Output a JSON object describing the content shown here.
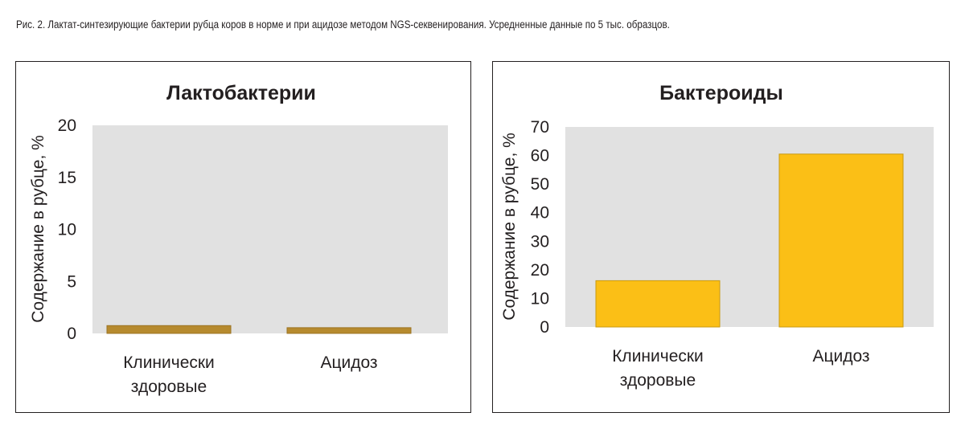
{
  "caption": "Рис. 2. Лактат-синтезирующие бактерии рубца коров в норме и при ацидозе методом NGS-секвенирования. Усредненные данные по 5 тыс. образцов.",
  "chart_data": [
    {
      "type": "bar",
      "title": "Лактобактерии",
      "ylabel": "Содержание в рубце, %",
      "xlabel": "",
      "categories": [
        [
          "Клинически",
          "здоровые"
        ],
        [
          "Ацидоз"
        ]
      ],
      "values": [
        0.75,
        0.55
      ],
      "ylim": [
        0,
        20
      ],
      "yticks": [
        0,
        5,
        10,
        15,
        20
      ],
      "bar_color": "#b68a2e",
      "bar_stroke": "#9c7424",
      "plot_background": "#e1e1e1",
      "grid": false,
      "legend": "none"
    },
    {
      "type": "bar",
      "title": "Бактероиды",
      "ylabel": "Содержание в рубце, %",
      "xlabel": "",
      "categories": [
        [
          "Клинически",
          "здоровые"
        ],
        [
          "Ацидоз"
        ]
      ],
      "values": [
        16.2,
        60.5
      ],
      "ylim": [
        0,
        70
      ],
      "yticks": [
        0,
        10,
        20,
        30,
        40,
        50,
        60,
        70
      ],
      "bar_color": "#fbbf16",
      "bar_stroke": "#c99a10",
      "plot_background": "#e1e1e1",
      "grid": false,
      "legend": "none"
    }
  ]
}
